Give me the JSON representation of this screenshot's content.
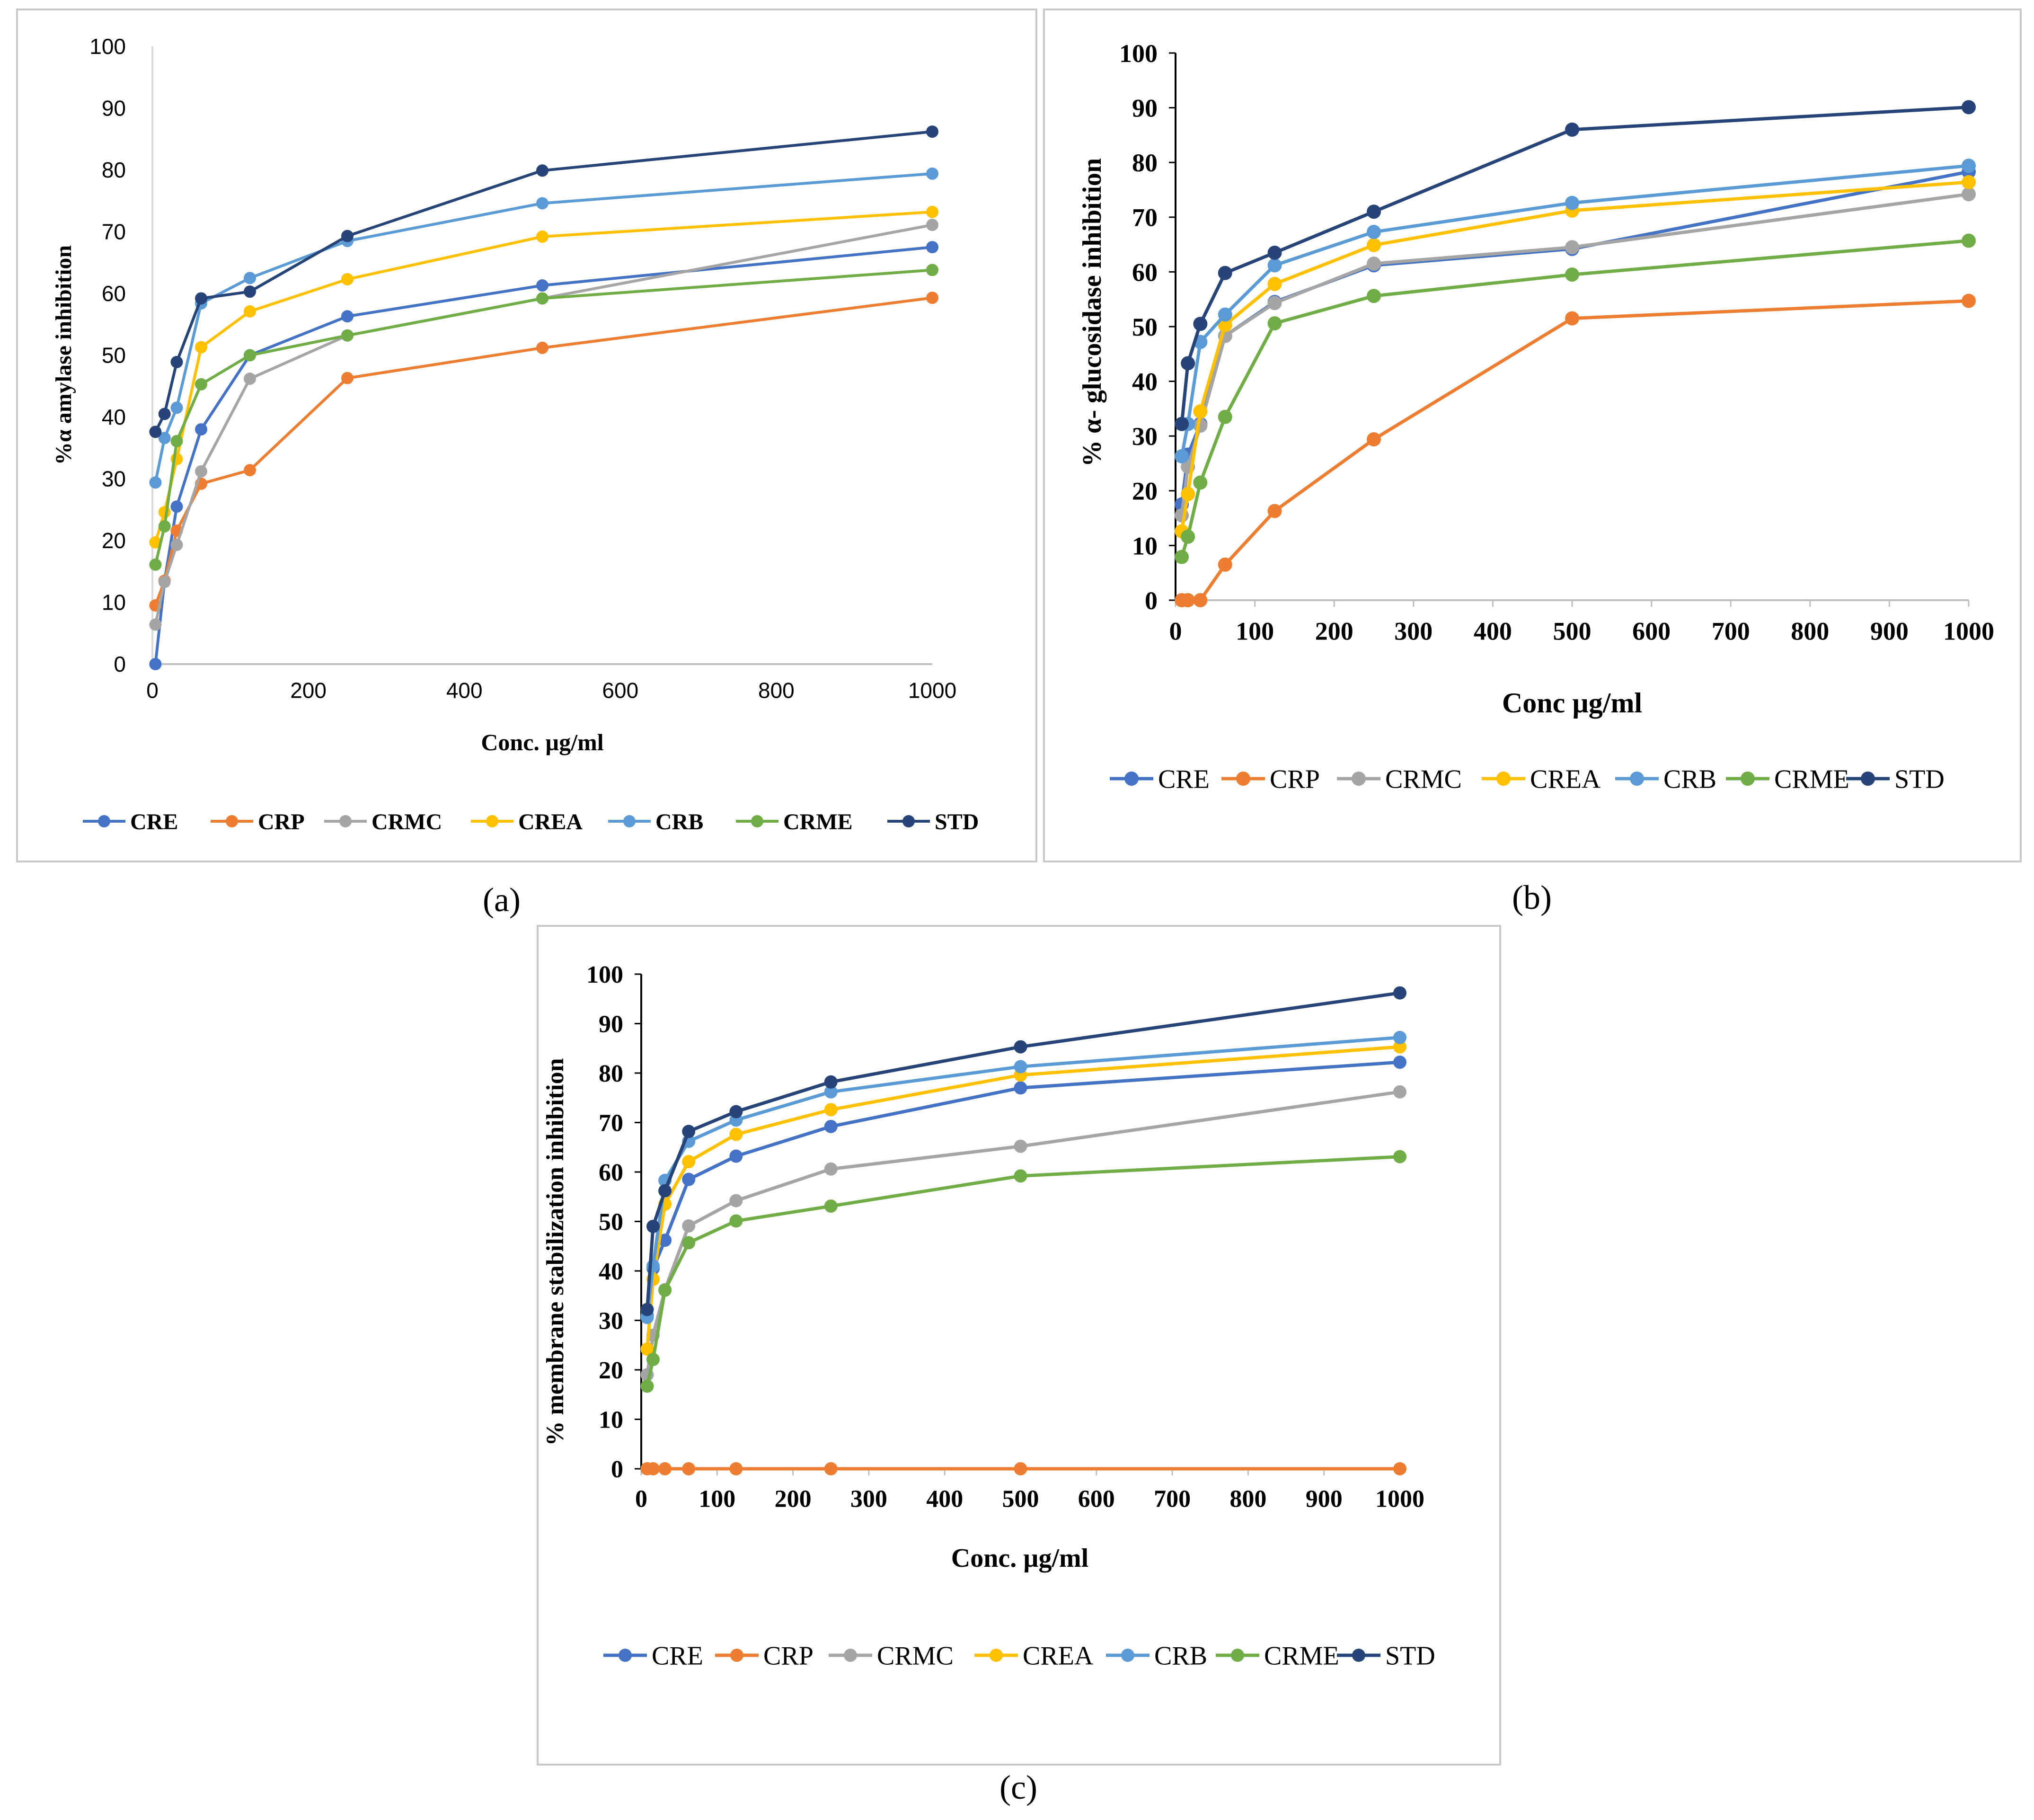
{
  "chart_data": [
    {
      "panel": "a",
      "type": "line",
      "caption": "(a)",
      "title": "",
      "xlabel": "Conc. µg/ml",
      "ylabel": "%α amylase inhibition",
      "xlim": [
        0,
        1000
      ],
      "ylim": [
        0,
        100
      ],
      "xticks": [
        0,
        200,
        400,
        600,
        800,
        1000
      ],
      "yticks": [
        0,
        10,
        20,
        30,
        40,
        50,
        60,
        70,
        80,
        90,
        100
      ],
      "x": [
        3.9,
        15.6,
        31.25,
        62.5,
        125,
        250,
        500,
        1000
      ],
      "legend_position": "bottom",
      "series": [
        {
          "name": "CRE",
          "color": "#4472c4",
          "values": [
            0,
            13.5,
            25.5,
            38,
            50,
            56.3,
            61.3,
            67.5
          ]
        },
        {
          "name": "CRP",
          "color": "#ed7d31",
          "values": [
            9.5,
            13.5,
            21.6,
            29.2,
            31.4,
            46.3,
            51.2,
            59.3
          ]
        },
        {
          "name": "CRMC",
          "color": "#a5a5a5",
          "values": [
            6.4,
            13.3,
            19.3,
            31.2,
            46.2,
            53.2,
            59.2,
            71.1
          ]
        },
        {
          "name": "CREA",
          "color": "#ffc000",
          "values": [
            19.7,
            24.6,
            33.2,
            51.3,
            57.1,
            62.3,
            69.2,
            73.2
          ]
        },
        {
          "name": "CRB",
          "color": "#5b9bd5",
          "values": [
            29.4,
            36.6,
            41.5,
            58.4,
            62.5,
            68.5,
            74.6,
            79.4
          ]
        },
        {
          "name": "CRME",
          "color": "#70ad47",
          "values": [
            16.1,
            22.3,
            36.1,
            45.3,
            50,
            53.2,
            59.2,
            63.8
          ]
        },
        {
          "name": "STD",
          "color": "#264478",
          "values": [
            37.6,
            40.5,
            48.9,
            59.2,
            60.3,
            69.3,
            79.9,
            86.2
          ]
        }
      ]
    },
    {
      "panel": "b",
      "type": "line",
      "caption": "(b)",
      "title": "",
      "xlabel": "Conc µg/ml",
      "ylabel": "% α- glucosidase inhibition",
      "xlim": [
        0,
        1000
      ],
      "ylim": [
        0,
        100
      ],
      "xticks": [
        0,
        100,
        200,
        300,
        400,
        500,
        600,
        700,
        800,
        900,
        1000
      ],
      "yticks": [
        0,
        10,
        20,
        30,
        40,
        50,
        60,
        70,
        80,
        90,
        100
      ],
      "x": [
        7.8,
        15.6,
        31.25,
        62.5,
        125,
        250,
        500,
        1000
      ],
      "legend_position": "bottom",
      "series": [
        {
          "name": "CRE",
          "color": "#4472c4",
          "values": [
            17.5,
            26.6,
            32.2,
            48.3,
            54.5,
            61.2,
            64.2,
            78.3
          ]
        },
        {
          "name": "CRP",
          "color": "#ed7d31",
          "values": [
            0,
            0,
            0,
            6.5,
            16.3,
            29.4,
            51.5,
            54.7
          ]
        },
        {
          "name": "CRMC",
          "color": "#a5a5a5",
          "values": [
            15.5,
            24.4,
            31.9,
            48.3,
            54.3,
            61.5,
            64.5,
            74.2
          ]
        },
        {
          "name": "CREA",
          "color": "#ffc000",
          "values": [
            12.6,
            19.4,
            34.5,
            50.3,
            57.8,
            64.9,
            71.2,
            76.4
          ]
        },
        {
          "name": "CRB",
          "color": "#5b9bd5",
          "values": [
            26.3,
            32.2,
            47.2,
            52.2,
            61.2,
            67.3,
            72.6,
            79.4
          ]
        },
        {
          "name": "CRME",
          "color": "#70ad47",
          "values": [
            7.9,
            11.6,
            21.5,
            33.5,
            50.6,
            55.6,
            59.5,
            65.7
          ]
        },
        {
          "name": "STD",
          "color": "#264478",
          "values": [
            32.2,
            43.3,
            50.5,
            59.8,
            63.5,
            71,
            86,
            90.1
          ]
        }
      ]
    },
    {
      "panel": "c",
      "type": "line",
      "caption": "(c)",
      "title": "",
      "xlabel": "Conc. µg/ml",
      "ylabel": "% membrane stabilization inhibition",
      "xlim": [
        0,
        1000
      ],
      "ylim": [
        0,
        100
      ],
      "xticks": [
        0,
        100,
        200,
        300,
        400,
        500,
        600,
        700,
        800,
        900,
        1000
      ],
      "yticks": [
        0,
        10,
        20,
        30,
        40,
        50,
        60,
        70,
        80,
        90,
        100
      ],
      "x": [
        7.8,
        15.6,
        31.25,
        62.5,
        125,
        250,
        500,
        1000
      ],
      "legend_position": "bottom",
      "series": [
        {
          "name": "CRE",
          "color": "#4472c4",
          "values": [
            31,
            40.5,
            46.2,
            58.5,
            63.2,
            69.2,
            77,
            82.2
          ]
        },
        {
          "name": "CRP",
          "color": "#ed7d31",
          "values": [
            0,
            0,
            0,
            0,
            0,
            0,
            0,
            0
          ]
        },
        {
          "name": "CRMC",
          "color": "#a5a5a5",
          "values": [
            19,
            27,
            36.2,
            49.1,
            54.2,
            60.6,
            65.2,
            76.2
          ]
        },
        {
          "name": "CREA",
          "color": "#ffc000",
          "values": [
            24.2,
            38.3,
            53.5,
            62.1,
            67.6,
            72.6,
            79.6,
            85.3
          ]
        },
        {
          "name": "CRB",
          "color": "#5b9bd5",
          "values": [
            30.6,
            41,
            58.3,
            66.2,
            70.5,
            76.2,
            81.3,
            87.2
          ]
        },
        {
          "name": "CRME",
          "color": "#70ad47",
          "values": [
            16.7,
            22.1,
            36.1,
            45.7,
            50.1,
            53.1,
            59.2,
            63.1
          ]
        },
        {
          "name": "STD",
          "color": "#264478",
          "values": [
            32.2,
            49,
            56.2,
            68.2,
            72.2,
            78.2,
            85.3,
            96.2
          ]
        }
      ]
    }
  ]
}
